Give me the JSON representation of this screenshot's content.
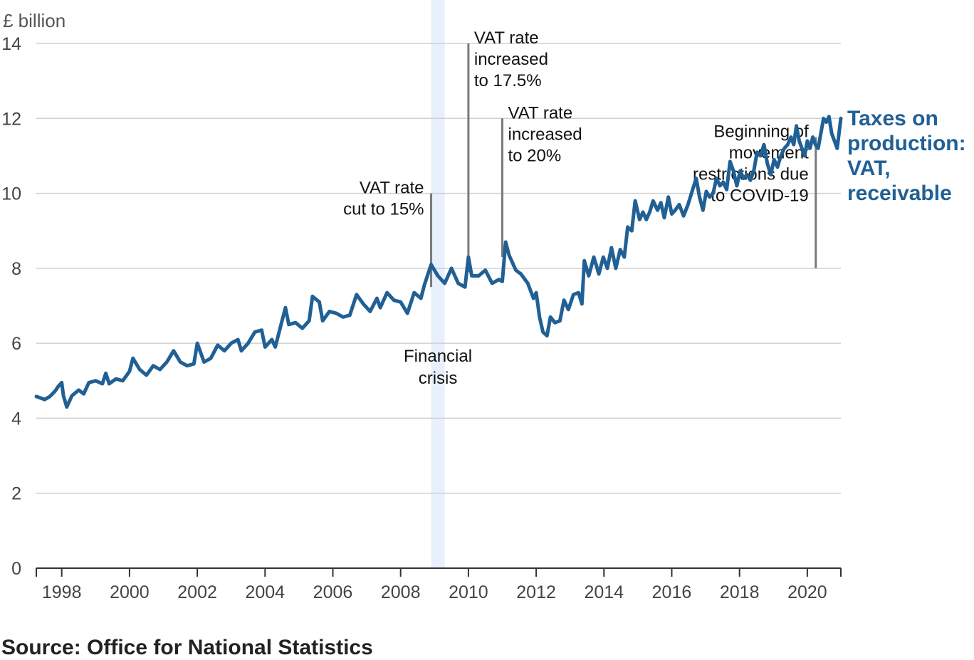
{
  "chart_data": {
    "type": "line",
    "ylabel": "£ billion",
    "ylim": [
      0,
      14
    ],
    "yticks": [
      0,
      2,
      4,
      6,
      8,
      10,
      12,
      14
    ],
    "xlim": [
      1997.25,
      2020.99
    ],
    "xticks": [
      1998,
      2000,
      2002,
      2004,
      2006,
      2008,
      2010,
      2012,
      2014,
      2016,
      2018,
      2020
    ],
    "grid": true,
    "series": [
      {
        "name": "Taxes on production: VAT, receivable",
        "label_lines": [
          "Taxes on",
          "production:",
          "VAT,",
          "receivable"
        ],
        "color": "#206095",
        "points": [
          [
            1997.25,
            4.58
          ],
          [
            1997.5,
            4.5
          ],
          [
            1997.65,
            4.58
          ],
          [
            1997.8,
            4.72
          ],
          [
            1997.9,
            4.85
          ],
          [
            1998.0,
            4.95
          ],
          [
            1998.05,
            4.6
          ],
          [
            1998.15,
            4.3
          ],
          [
            1998.3,
            4.6
          ],
          [
            1998.5,
            4.75
          ],
          [
            1998.65,
            4.65
          ],
          [
            1998.8,
            4.95
          ],
          [
            1999.0,
            5.0
          ],
          [
            1999.2,
            4.92
          ],
          [
            1999.3,
            5.2
          ],
          [
            1999.4,
            4.92
          ],
          [
            1999.6,
            5.05
          ],
          [
            1999.8,
            5.0
          ],
          [
            2000.0,
            5.25
          ],
          [
            2000.1,
            5.6
          ],
          [
            2000.3,
            5.3
          ],
          [
            2000.5,
            5.15
          ],
          [
            2000.7,
            5.4
          ],
          [
            2000.9,
            5.3
          ],
          [
            2001.1,
            5.5
          ],
          [
            2001.3,
            5.8
          ],
          [
            2001.5,
            5.5
          ],
          [
            2001.7,
            5.4
          ],
          [
            2001.9,
            5.45
          ],
          [
            2002.0,
            6.0
          ],
          [
            2002.2,
            5.5
          ],
          [
            2002.4,
            5.6
          ],
          [
            2002.6,
            5.95
          ],
          [
            2002.8,
            5.8
          ],
          [
            2003.0,
            6.0
          ],
          [
            2003.2,
            6.1
          ],
          [
            2003.3,
            5.8
          ],
          [
            2003.5,
            6.0
          ],
          [
            2003.7,
            6.3
          ],
          [
            2003.9,
            6.35
          ],
          [
            2004.0,
            5.9
          ],
          [
            2004.2,
            6.1
          ],
          [
            2004.3,
            5.9
          ],
          [
            2004.5,
            6.6
          ],
          [
            2004.6,
            6.95
          ],
          [
            2004.7,
            6.5
          ],
          [
            2004.9,
            6.55
          ],
          [
            2005.1,
            6.4
          ],
          [
            2005.3,
            6.6
          ],
          [
            2005.4,
            7.25
          ],
          [
            2005.6,
            7.1
          ],
          [
            2005.7,
            6.6
          ],
          [
            2005.9,
            6.85
          ],
          [
            2006.1,
            6.8
          ],
          [
            2006.3,
            6.7
          ],
          [
            2006.5,
            6.75
          ],
          [
            2006.7,
            7.3
          ],
          [
            2006.9,
            7.05
          ],
          [
            2007.1,
            6.85
          ],
          [
            2007.3,
            7.2
          ],
          [
            2007.4,
            6.95
          ],
          [
            2007.6,
            7.35
          ],
          [
            2007.8,
            7.15
          ],
          [
            2008.0,
            7.1
          ],
          [
            2008.2,
            6.8
          ],
          [
            2008.4,
            7.35
          ],
          [
            2008.6,
            7.2
          ],
          [
            2008.7,
            7.55
          ],
          [
            2008.9,
            8.1
          ],
          [
            2009.1,
            7.8
          ],
          [
            2009.3,
            7.6
          ],
          [
            2009.5,
            8.0
          ],
          [
            2009.7,
            7.6
          ],
          [
            2009.9,
            7.5
          ],
          [
            2010.0,
            8.3
          ],
          [
            2010.1,
            7.8
          ],
          [
            2010.3,
            7.8
          ],
          [
            2010.5,
            7.95
          ],
          [
            2010.7,
            7.6
          ],
          [
            2010.9,
            7.7
          ],
          [
            2011.0,
            7.65
          ],
          [
            2011.1,
            8.7
          ],
          [
            2011.2,
            8.35
          ],
          [
            2011.4,
            7.95
          ],
          [
            2011.55,
            7.85
          ],
          [
            2011.75,
            7.6
          ],
          [
            2011.92,
            7.2
          ],
          [
            2012.0,
            7.35
          ],
          [
            2012.1,
            6.7
          ],
          [
            2012.2,
            6.3
          ],
          [
            2012.32,
            6.2
          ],
          [
            2012.42,
            6.7
          ],
          [
            2012.55,
            6.55
          ],
          [
            2012.7,
            6.6
          ],
          [
            2012.82,
            7.15
          ],
          [
            2012.95,
            6.9
          ],
          [
            2013.1,
            7.3
          ],
          [
            2013.25,
            7.35
          ],
          [
            2013.35,
            7.05
          ],
          [
            2013.42,
            8.2
          ],
          [
            2013.55,
            7.8
          ],
          [
            2013.7,
            8.3
          ],
          [
            2013.85,
            7.85
          ],
          [
            2013.98,
            8.3
          ],
          [
            2014.1,
            8.0
          ],
          [
            2014.22,
            8.55
          ],
          [
            2014.35,
            8.0
          ],
          [
            2014.48,
            8.5
          ],
          [
            2014.6,
            8.3
          ],
          [
            2014.7,
            9.1
          ],
          [
            2014.82,
            9.0
          ],
          [
            2014.92,
            9.8
          ],
          [
            2015.05,
            9.3
          ],
          [
            2015.15,
            9.5
          ],
          [
            2015.25,
            9.3
          ],
          [
            2015.35,
            9.5
          ],
          [
            2015.45,
            9.8
          ],
          [
            2015.58,
            9.55
          ],
          [
            2015.68,
            9.75
          ],
          [
            2015.78,
            9.35
          ],
          [
            2015.9,
            9.9
          ],
          [
            2016.0,
            9.45
          ],
          [
            2016.1,
            9.55
          ],
          [
            2016.22,
            9.7
          ],
          [
            2016.35,
            9.4
          ],
          [
            2016.48,
            9.7
          ],
          [
            2016.6,
            10.05
          ],
          [
            2016.72,
            10.4
          ],
          [
            2016.82,
            9.9
          ],
          [
            2016.92,
            9.55
          ],
          [
            2017.02,
            10.05
          ],
          [
            2017.12,
            9.9
          ],
          [
            2017.22,
            10.0
          ],
          [
            2017.32,
            10.4
          ],
          [
            2017.42,
            10.2
          ],
          [
            2017.52,
            10.3
          ],
          [
            2017.62,
            10.1
          ],
          [
            2017.72,
            10.85
          ],
          [
            2017.82,
            10.6
          ],
          [
            2017.92,
            10.2
          ],
          [
            2018.02,
            10.6
          ],
          [
            2018.12,
            10.4
          ],
          [
            2018.22,
            10.5
          ],
          [
            2018.32,
            10.35
          ],
          [
            2018.42,
            10.6
          ],
          [
            2018.52,
            11.1
          ],
          [
            2018.62,
            11.0
          ],
          [
            2018.72,
            11.3
          ],
          [
            2018.82,
            10.8
          ],
          [
            2018.92,
            10.5
          ],
          [
            2019.02,
            10.9
          ],
          [
            2019.12,
            10.7
          ],
          [
            2019.22,
            11.0
          ],
          [
            2019.32,
            11.2
          ],
          [
            2019.42,
            11.3
          ],
          [
            2019.52,
            11.5
          ],
          [
            2019.6,
            11.3
          ],
          [
            2019.68,
            11.8
          ],
          [
            2019.76,
            11.4
          ],
          [
            2019.84,
            11.2
          ],
          [
            2019.92,
            11.0
          ],
          [
            2020.0,
            11.4
          ],
          [
            2020.08,
            11.2
          ],
          [
            2020.16,
            11.5
          ],
          [
            2020.24,
            11.3
          ],
          [
            2020.32,
            11.2
          ],
          [
            2020.4,
            11.6
          ],
          [
            2020.48,
            12.0
          ],
          [
            2020.56,
            11.9
          ],
          [
            2020.64,
            12.05
          ],
          [
            2020.72,
            11.6
          ],
          [
            2020.8,
            11.4
          ],
          [
            2020.88,
            11.2
          ],
          [
            2020.99,
            12.0
          ]
        ]
      }
    ],
    "shaded_period": {
      "x0": 2008.9,
      "x1": 2009.3,
      "label_lines": [
        "Financial",
        "crisis"
      ],
      "color": "#e8f0fd"
    },
    "annotations": [
      {
        "x": 2008.9,
        "y_top": 10.0,
        "y_bottom": 7.5,
        "text_lines": [
          "VAT rate",
          "cut to 15%"
        ],
        "anchor": "end"
      },
      {
        "x": 2010.0,
        "y_top": 14.0,
        "y_bottom": 7.9,
        "text_lines": [
          "VAT rate",
          "increased",
          "to 17.5%"
        ],
        "anchor": "start"
      },
      {
        "x": 2011.0,
        "y_top": 12.0,
        "y_bottom": 8.3,
        "text_lines": [
          "VAT rate",
          "increased",
          "to 20%"
        ],
        "anchor": "start"
      },
      {
        "x": 2020.25,
        "y_top": 11.5,
        "y_bottom": 8.0,
        "text_lines": [
          "Beginning of",
          "movement",
          "restrictions due",
          "to COVID-19"
        ],
        "anchor": "end"
      }
    ]
  },
  "source": "Source: Office for National Statistics"
}
